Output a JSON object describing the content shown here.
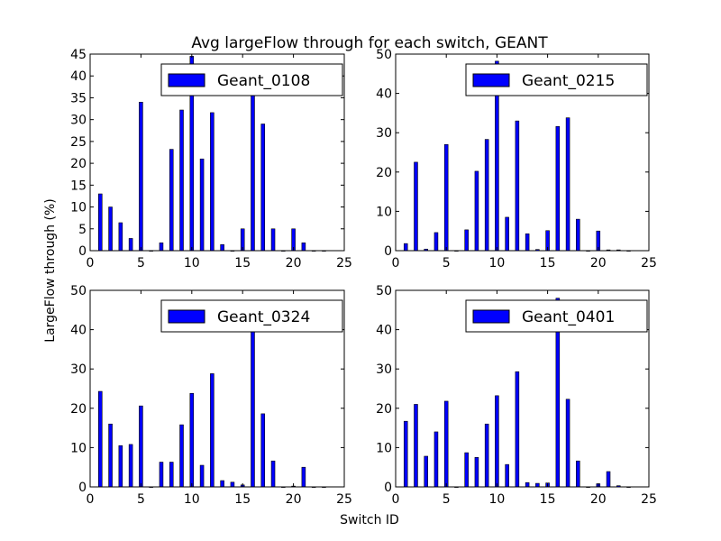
{
  "figure": {
    "title": "Avg largeFlow through for each switch, GEANT",
    "xlabel": "Switch ID",
    "ylabel": "LargeFlow through (%)"
  },
  "colors": {
    "bar": "#0000ff",
    "bar_edge": "#000000",
    "axis": "#000000",
    "background": "#ffffff"
  },
  "chart_data": [
    {
      "type": "bar",
      "legend": "Geant_0108",
      "legend_position": "top-right",
      "xlim": [
        0,
        25
      ],
      "ylim": [
        0,
        45
      ],
      "xticks": [
        0,
        5,
        10,
        15,
        20,
        25
      ],
      "yticks": [
        0,
        5,
        10,
        15,
        20,
        25,
        30,
        35,
        40,
        45
      ],
      "grid": false,
      "x": [
        1,
        2,
        3,
        4,
        5,
        6,
        7,
        8,
        9,
        10,
        11,
        12,
        13,
        14,
        15,
        16,
        17,
        18,
        19,
        20,
        21,
        22,
        23
      ],
      "values": [
        13,
        10,
        6.4,
        2.8,
        34,
        0,
        1.8,
        23.2,
        32.2,
        44.5,
        21,
        31.6,
        1.4,
        0,
        5,
        36,
        29,
        5,
        0,
        5,
        1.8,
        0,
        0
      ]
    },
    {
      "type": "bar",
      "legend": "Geant_0215",
      "legend_position": "top-right",
      "xlim": [
        0,
        25
      ],
      "ylim": [
        0,
        50
      ],
      "xticks": [
        0,
        5,
        10,
        15,
        20,
        25
      ],
      "yticks": [
        0,
        10,
        20,
        30,
        40,
        50
      ],
      "grid": false,
      "x": [
        1,
        2,
        3,
        4,
        5,
        6,
        7,
        8,
        9,
        10,
        11,
        12,
        13,
        14,
        15,
        16,
        17,
        18,
        19,
        20,
        21,
        22,
        23
      ],
      "values": [
        1.8,
        22.5,
        0.4,
        4.6,
        27,
        0,
        5.3,
        20.2,
        28.3,
        48.2,
        8.5,
        33,
        4.3,
        0.3,
        5.1,
        31.6,
        33.8,
        8,
        0,
        5,
        0.2,
        0.2,
        0
      ]
    },
    {
      "type": "bar",
      "legend": "Geant_0324",
      "legend_position": "top-right",
      "xlim": [
        0,
        25
      ],
      "ylim": [
        0,
        50
      ],
      "xticks": [
        0,
        5,
        10,
        15,
        20,
        25
      ],
      "yticks": [
        0,
        10,
        20,
        30,
        40,
        50
      ],
      "grid": false,
      "x": [
        1,
        2,
        3,
        4,
        5,
        6,
        7,
        8,
        9,
        10,
        11,
        12,
        13,
        14,
        15,
        16,
        17,
        18,
        19,
        20,
        21,
        22,
        23
      ],
      "values": [
        24.3,
        16,
        10.5,
        10.8,
        20.6,
        0,
        6.3,
        6.3,
        15.8,
        23.8,
        5.5,
        28.8,
        1.6,
        1.2,
        0.5,
        40,
        18.6,
        6.6,
        0,
        0.2,
        5,
        0,
        0
      ]
    },
    {
      "type": "bar",
      "legend": "Geant_0401",
      "legend_position": "top-right",
      "xlim": [
        0,
        25
      ],
      "ylim": [
        0,
        50
      ],
      "xticks": [
        0,
        5,
        10,
        15,
        20,
        25
      ],
      "yticks": [
        0,
        10,
        20,
        30,
        40,
        50
      ],
      "grid": false,
      "x": [
        1,
        2,
        3,
        4,
        5,
        6,
        7,
        8,
        9,
        10,
        11,
        12,
        13,
        14,
        15,
        16,
        17,
        18,
        19,
        20,
        21,
        22,
        23
      ],
      "values": [
        16.7,
        21,
        7.8,
        14,
        21.8,
        0,
        8.7,
        7.5,
        16,
        23.2,
        5.7,
        29.3,
        1.1,
        0.9,
        1,
        48,
        22.3,
        6.6,
        0,
        0.8,
        3.9,
        0.3,
        0
      ]
    }
  ]
}
